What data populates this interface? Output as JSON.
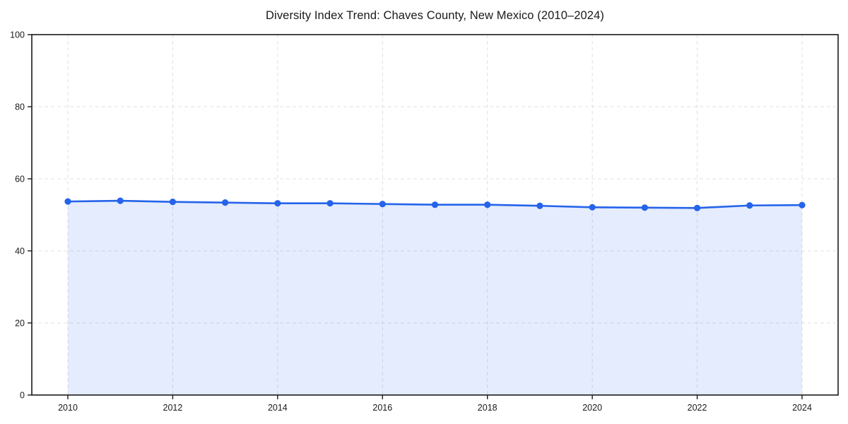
{
  "chart_data": {
    "type": "line",
    "title": "Diversity Index Trend: Chaves County, New Mexico (2010–2024)",
    "x": [
      2010,
      2011,
      2012,
      2013,
      2014,
      2015,
      2016,
      2017,
      2018,
      2019,
      2020,
      2021,
      2022,
      2023,
      2024
    ],
    "series": [
      {
        "name": "Diversity Index",
        "values": [
          53.7,
          53.9,
          53.6,
          53.4,
          53.2,
          53.2,
          53.0,
          52.8,
          52.8,
          52.5,
          52.1,
          52.0,
          51.9,
          52.6,
          52.7
        ]
      }
    ],
    "ylim": [
      0,
      100
    ],
    "yticks": [
      0,
      20,
      40,
      60,
      80,
      100
    ],
    "xticks": [
      2010,
      2012,
      2014,
      2016,
      2018,
      2020,
      2022,
      2024
    ],
    "grid": true,
    "grid_style": "dashed",
    "legend": false,
    "marker": "circle",
    "area_fill": true,
    "colors": {
      "line": "#2563eb",
      "marker": "#2563eb",
      "fill": "rgba(37, 99, 235, 0.12)",
      "grid": "#e0e0e0",
      "axis": "#1a1a1a",
      "background": "#ffffff"
    }
  }
}
